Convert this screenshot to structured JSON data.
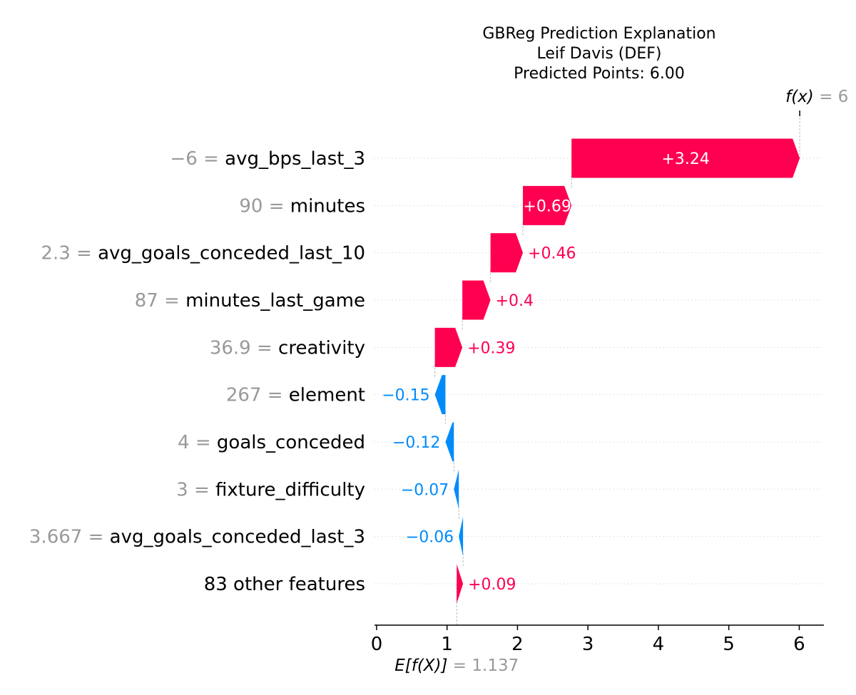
{
  "chart_data": {
    "type": "waterfall",
    "title_lines": [
      "GBReg Prediction Explanation",
      "Leif Davis (DEF)",
      "Predicted Points: 6.00"
    ],
    "base_value": 1.137,
    "base_value_text": "1.137",
    "output_value": 6,
    "output_value_text": "6",
    "xlim": [
      -0.03,
      6.35
    ],
    "xticks": [
      0,
      1,
      2,
      3,
      4,
      5,
      6
    ],
    "xtick_labels": [
      "0",
      "1",
      "2",
      "3",
      "4",
      "5",
      "6"
    ],
    "features": [
      {
        "value": "−6",
        "name": "avg_bps_last_3",
        "shap": 3.24,
        "label": "+3.24"
      },
      {
        "value": "90",
        "name": "minutes",
        "shap": 0.69,
        "label": "+0.69"
      },
      {
        "value": "2.3",
        "name": "avg_goals_conceded_last_10",
        "shap": 0.46,
        "label": "+0.46"
      },
      {
        "value": "87",
        "name": "minutes_last_game",
        "shap": 0.4,
        "label": "+0.4"
      },
      {
        "value": "36.9",
        "name": "creativity",
        "shap": 0.39,
        "label": "+0.39"
      },
      {
        "value": "267",
        "name": "element",
        "shap": -0.15,
        "label": "−0.15"
      },
      {
        "value": "4",
        "name": "goals_conceded",
        "shap": -0.12,
        "label": "−0.12"
      },
      {
        "value": "3",
        "name": "fixture_difficulty",
        "shap": -0.07,
        "label": "−0.07"
      },
      {
        "value": "3.667",
        "name": "avg_goals_conceded_last_3",
        "shap": -0.06,
        "label": "−0.06"
      },
      {
        "value": "",
        "name": "83 other features",
        "shap": 0.09,
        "label": "+0.09"
      }
    ],
    "colors": {
      "positive": "#ff0051",
      "negative": "#008bfb",
      "value_text": "#999999"
    }
  }
}
